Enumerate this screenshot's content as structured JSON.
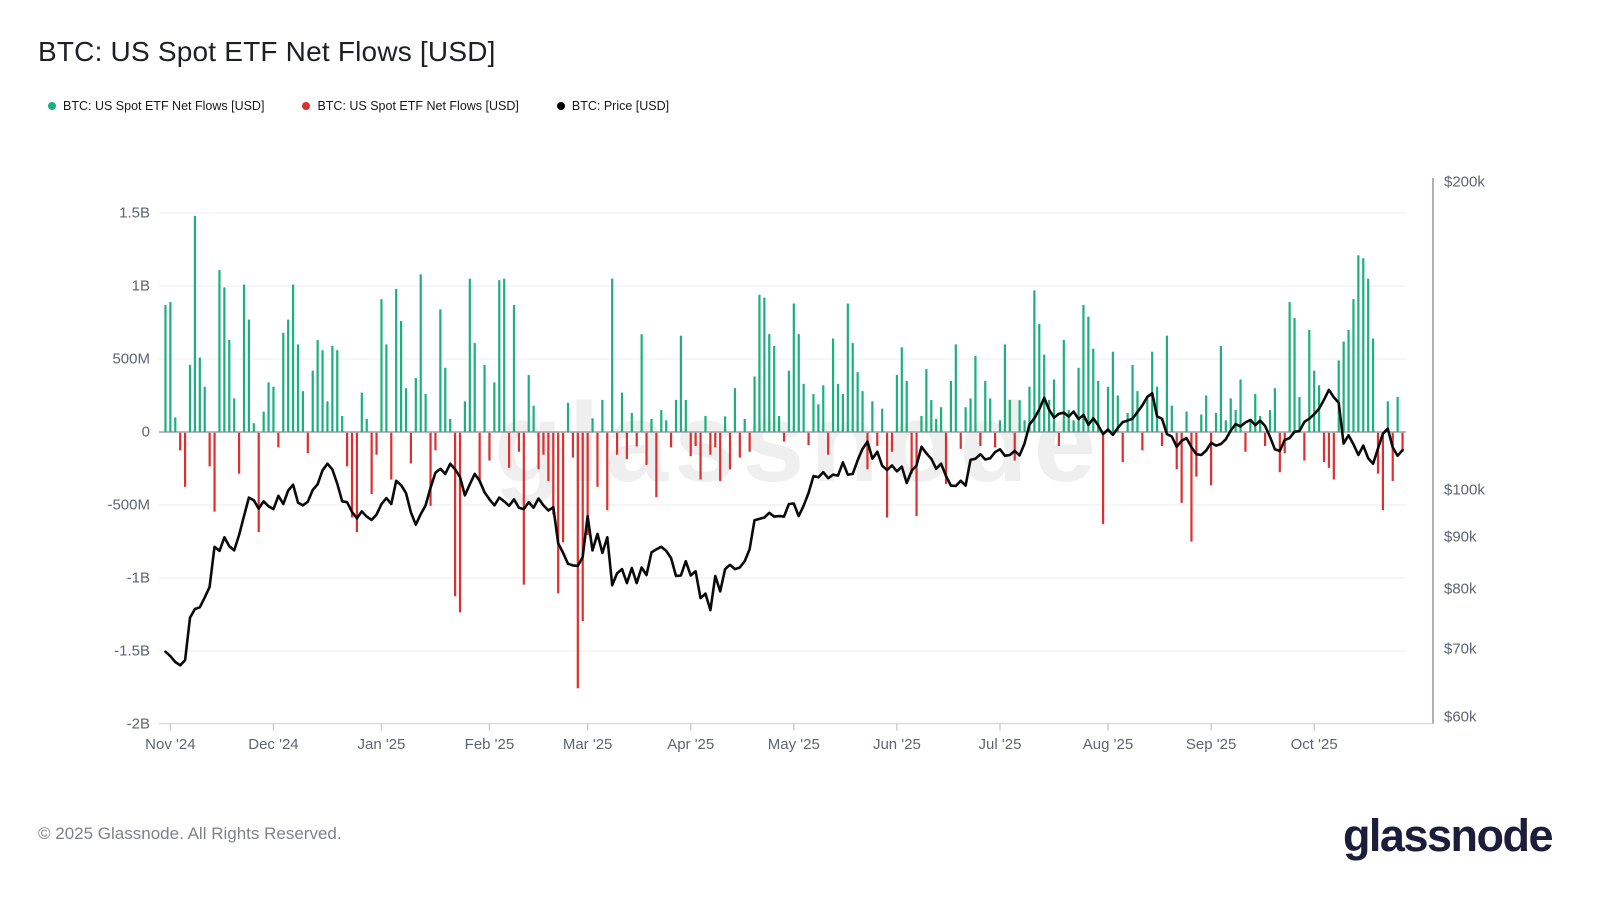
{
  "page": {
    "title": "BTC: US Spot ETF Net Flows [USD]",
    "footer": "© 2025 Glassnode. All Rights Reserved.",
    "brand": "glassnode",
    "watermark": "glassnode"
  },
  "legend": [
    {
      "label": "BTC: US Spot ETF Net Flows [USD]",
      "color": "#1cb07e"
    },
    {
      "label": "BTC: US Spot ETF Net Flows [USD]",
      "color": "#dd2f2f"
    },
    {
      "label": "BTC: Price [USD]",
      "color": "#000000"
    }
  ],
  "chart_data": {
    "type": "bar+line",
    "title": "BTC: US Spot ETF Net Flows [USD]",
    "grid": "horizontal",
    "legend_position": "top-left",
    "x_axis": {
      "tick_labels": [
        "Nov '24",
        "Dec '24",
        "Jan '25",
        "Feb '25",
        "Mar '25",
        "Apr '25",
        "May '25",
        "Jun '25",
        "Jul '25",
        "Aug '25",
        "Sep '25",
        "Oct '25"
      ],
      "months_day_counts": [
        21,
        22,
        22,
        20,
        21,
        21,
        21,
        21,
        22,
        21,
        21,
        20
      ]
    },
    "left_axis": {
      "title": "ETF net flow, USD",
      "tick_labels": [
        "1.5B",
        "1B",
        "500M",
        "0",
        "-500M",
        "-1B",
        "-1.5B",
        "-2B"
      ],
      "tick_values_musd": [
        1500,
        1000,
        500,
        0,
        -500,
        -1000,
        -1500,
        -2000
      ],
      "range_musd": [
        -2000,
        1600
      ]
    },
    "right_axis": {
      "title": "BTC price, USD",
      "scale": "log",
      "tick_labels": [
        "$200k",
        "$100k",
        "$90k",
        "$80k",
        "$70k",
        "$60k"
      ],
      "tick_values_usd": [
        200000,
        100000,
        90000,
        80000,
        70000,
        60000
      ],
      "range_usd": [
        60000,
        200000
      ]
    },
    "series": [
      {
        "name": "BTC: US Spot ETF Net Flows [USD]",
        "type": "bar",
        "unit": "million USD per day",
        "color_positive": "#1cb07e",
        "color_negative": "#dd2f2f",
        "values": [
          870,
          890,
          100,
          -120,
          -370,
          460,
          1480,
          510,
          310,
          -230,
          -540,
          1110,
          990,
          630,
          230,
          -280,
          1010,
          770,
          60,
          -680,
          140,
          340,
          310,
          -100,
          680,
          770,
          1010,
          600,
          280,
          -140,
          420,
          630,
          560,
          210,
          590,
          560,
          110,
          -230,
          -580,
          -680,
          270,
          90,
          -420,
          -150,
          910,
          600,
          -320,
          980,
          760,
          300,
          -210,
          370,
          1080,
          260,
          -500,
          -120,
          840,
          440,
          90,
          -1120,
          -1230,
          210,
          1050,
          610,
          -340,
          460,
          -190,
          340,
          1040,
          1050,
          -240,
          870,
          -130,
          -1040,
          390,
          180,
          -250,
          -150,
          -330,
          -560,
          -1100,
          -750,
          200,
          -170,
          -1750,
          -1290,
          -700,
          94,
          -370,
          220,
          -530,
          1050,
          -150,
          270,
          -180,
          130,
          -93,
          670,
          -220,
          90,
          -440,
          150,
          80,
          -100,
          220,
          660,
          220,
          -160,
          -90,
          -320,
          110,
          -150,
          -100,
          -330,
          107,
          -250,
          300,
          -170,
          90,
          -130,
          380,
          940,
          920,
          670,
          590,
          110,
          -60,
          420,
          880,
          670,
          330,
          -85,
          260,
          190,
          320,
          -150,
          640,
          330,
          260,
          880,
          610,
          410,
          280,
          -250,
          210,
          -90,
          160,
          -580,
          -130,
          390,
          580,
          350,
          -280,
          -570,
          110,
          431,
          220,
          90,
          170,
          -350,
          350,
          600,
          -110,
          170,
          230,
          520,
          -90,
          350,
          230,
          -100,
          80,
          600,
          220,
          -190,
          218,
          80,
          310,
          970,
          740,
          530,
          220,
          360,
          -90,
          630,
          150,
          80,
          440,
          870,
          790,
          570,
          350,
          -625,
          310,
          550,
          250,
          -200,
          130,
          460,
          280,
          -120,
          230,
          550,
          310,
          -90,
          660,
          180,
          -250,
          -480,
          140,
          -745,
          -300,
          120,
          250,
          -360,
          130,
          590,
          80,
          230,
          150,
          360,
          -130,
          90,
          260,
          110,
          -90,
          150,
          300,
          -270,
          -140,
          890,
          780,
          240,
          -190,
          700,
          420,
          320,
          -200,
          -240,
          -320,
          490,
          620,
          700,
          910,
          1210,
          1190,
          1050,
          640,
          -280,
          -530,
          210,
          -330,
          240,
          -130
        ]
      },
      {
        "name": "BTC: Price [USD]",
        "type": "line",
        "unit": "thousand USD",
        "color": "#0a0a0a",
        "values": [
          69.5,
          68.8,
          67.9,
          67.4,
          68.2,
          75.0,
          76.5,
          76.8,
          78.5,
          80.4,
          88.0,
          87.2,
          89.9,
          88.1,
          87.3,
          90.4,
          94.3,
          98.3,
          97.7,
          95.9,
          97.5,
          96.4,
          95.8,
          98.7,
          96.9,
          99.9,
          101.2,
          97.2,
          96.6,
          97.4,
          100.0,
          101.3,
          104.5,
          106.1,
          104.7,
          101.4,
          97.5,
          97.3,
          95.2,
          93.8,
          95.3,
          94.2,
          93.5,
          94.6,
          96.9,
          98.2,
          96.9,
          102.1,
          101.1,
          99.3,
          95.1,
          92.5,
          94.7,
          96.6,
          100.5,
          104.0,
          104.9,
          103.7,
          106.1,
          104.8,
          103.0,
          98.8,
          101.3,
          103.7,
          102.1,
          99.5,
          97.9,
          96.6,
          98.3,
          97.5,
          96.5,
          97.9,
          96.1,
          95.8,
          97.3,
          96.1,
          98.1,
          96.6,
          95.5,
          96.2,
          88.7,
          86.8,
          84.7,
          84.4,
          84.3,
          86.0,
          94.3,
          87.3,
          90.6,
          86.8,
          89.9,
          80.7,
          82.9,
          83.7,
          81.1,
          83.9,
          81.1,
          84.0,
          82.6,
          86.9,
          87.5,
          88.0,
          87.2,
          85.8,
          82.4,
          82.5,
          85.2,
          82.5,
          83.3,
          78.4,
          79.2,
          76.3,
          82.4,
          79.6,
          83.7,
          84.5,
          83.7,
          84.0,
          85.2,
          87.5,
          93.4,
          93.7,
          94.0,
          95.0,
          94.2,
          94.3,
          94.2,
          96.9,
          97.0,
          94.3,
          96.5,
          99.3,
          103.2,
          102.9,
          104.1,
          102.7,
          103.5,
          103.3,
          106.4,
          103.5,
          103.7,
          106.9,
          109.7,
          111.5,
          107.3,
          109.0,
          105.6,
          104.6,
          105.7,
          104.3,
          105.4,
          101.6,
          104.4,
          105.7,
          110.2,
          108.6,
          107.3,
          104.9,
          106.1,
          103.2,
          101.0,
          100.9,
          102.1,
          101.0,
          107.0,
          107.3,
          108.4,
          107.1,
          107.4,
          108.9,
          109.6,
          108.0,
          108.2,
          109.2,
          108.1,
          111.0,
          115.9,
          117.5,
          119.9,
          123.1,
          119.8,
          117.7,
          118.7,
          119.0,
          118.0,
          119.3,
          117.3,
          118.4,
          115.8,
          117.5,
          115.7,
          113.4,
          114.6,
          113.2,
          115.0,
          116.5,
          116.9,
          117.4,
          119.2,
          121.0,
          123.3,
          124.3,
          118.0,
          117.4,
          113.4,
          112.8,
          110.2,
          111.7,
          112.4,
          110.1,
          108.4,
          108.2,
          109.3,
          111.2,
          110.5,
          110.9,
          112.1,
          114.3,
          116.0,
          115.4,
          116.4,
          117.1,
          115.7,
          116.9,
          115.5,
          112.7,
          109.6,
          109.2,
          111.9,
          112.4,
          114.0,
          114.2,
          116.6,
          117.4,
          118.6,
          120.1,
          122.5,
          125.3,
          123.2,
          121.7,
          111.0,
          113.1,
          110.8,
          108.2,
          110.5,
          107.4,
          106.1,
          109.8,
          113.5,
          114.8,
          110.1,
          108.0,
          109.4
        ]
      }
    ],
    "style": {
      "grid_color": "#f1f1f2",
      "zero_line_color": "#9aa0a6",
      "axis_line_color": "#8b9097",
      "bottom_axis_color": "#d9dbe0",
      "tick_mark_color": "#c9cbd0",
      "label_color": "#5f6470"
    }
  }
}
